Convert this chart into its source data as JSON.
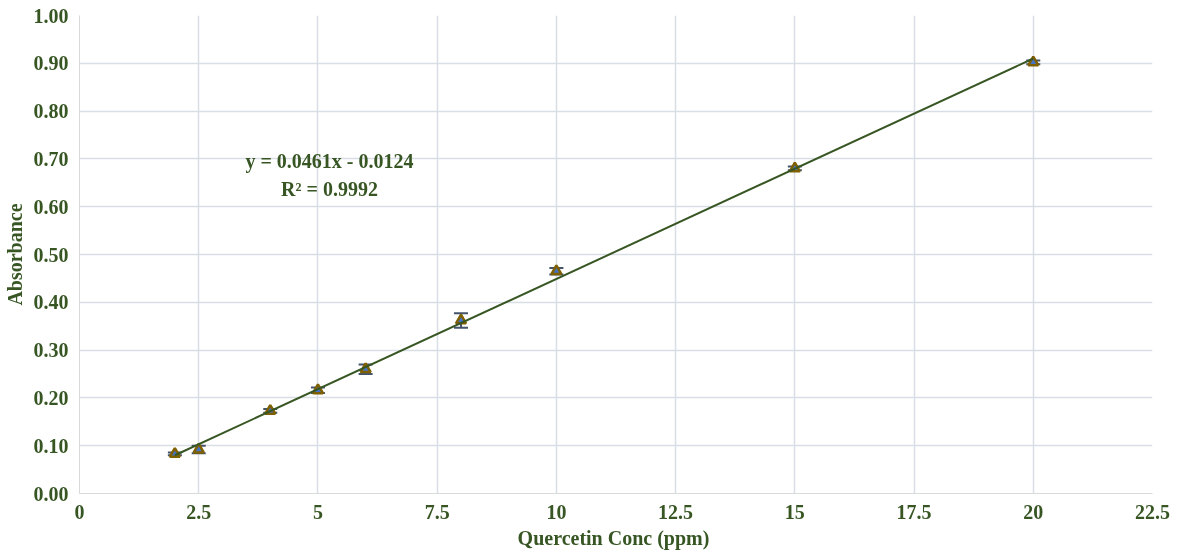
{
  "chart_data": {
    "type": "scatter",
    "xlabel": "Quercetin Conc  (ppm)",
    "ylabel": "Absorbance",
    "xlim": [
      0,
      22.5
    ],
    "xticks": [
      0,
      2.5,
      5,
      7.5,
      10,
      12.5,
      15,
      17.5,
      20,
      22.5
    ],
    "ylim": [
      0,
      1.0
    ],
    "yticks": [
      {
        "value": 0,
        "label": "0.00"
      },
      {
        "value": 0.1,
        "label": "0.10"
      },
      {
        "value": 0.2,
        "label": "0.20"
      },
      {
        "value": 0.3,
        "label": "0.30"
      },
      {
        "value": 0.4,
        "label": "0.40"
      },
      {
        "value": 0.5,
        "label": "0.50"
      },
      {
        "value": 0.6,
        "label": "0.60"
      },
      {
        "value": 0.7,
        "label": "0.70"
      },
      {
        "value": 0.8,
        "label": "0.80"
      },
      {
        "value": 0.9,
        "label": "0.90"
      },
      {
        "value": 1.0,
        "label": "1.00"
      }
    ],
    "grid": true,
    "series": [
      {
        "marker": "triangle",
        "color": "#4472c4",
        "x": [
          2,
          2.5,
          4,
          5,
          6,
          8,
          10,
          15,
          20
        ],
        "values": [
          0.083,
          0.092,
          0.173,
          0.216,
          0.26,
          0.362,
          0.465,
          0.68,
          0.902
        ],
        "errors": [
          0.003,
          0.008,
          0.004,
          0.006,
          0.01,
          0.015,
          0.007,
          0.004,
          0.004
        ]
      },
      {
        "type": "line",
        "color": "#375623",
        "x": [
          2,
          20
        ],
        "values": [
          0.08,
          0.91
        ]
      }
    ],
    "annotations": [
      "y = 0.0461x - 0.0124",
      "R² = 0.9992"
    ]
  }
}
